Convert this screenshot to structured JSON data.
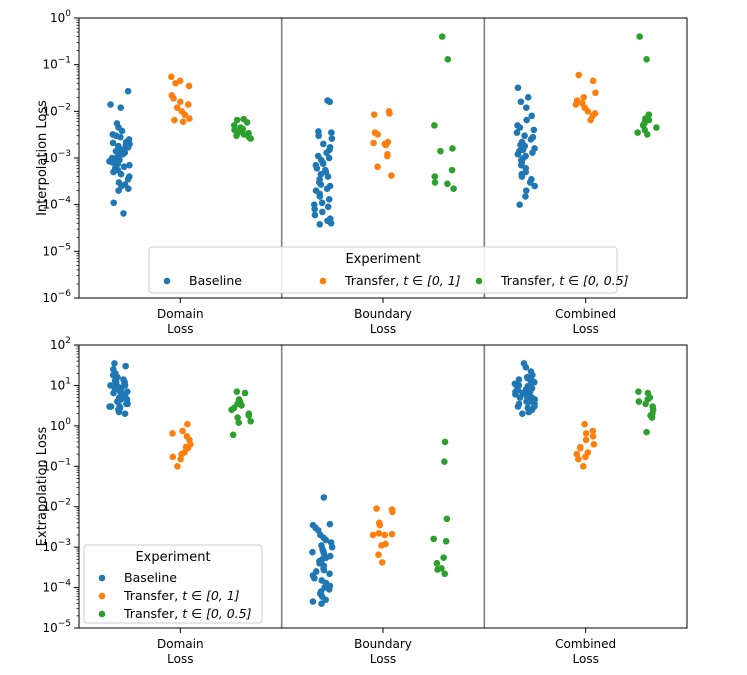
{
  "colors": {
    "baseline": "#1f77b4",
    "transfer_0_1": "#ff7f0e",
    "transfer_0_05": "#2ca02c",
    "separator": "#7f7f7f",
    "frame": "#000000"
  },
  "chart_data": [
    {
      "type": "scatter",
      "ylabel": "Interpolation Loss",
      "yscale": "log",
      "ylim": [
        1e-06,
        1
      ],
      "yticks": [
        {
          "value": 1e-06,
          "base": "10",
          "exp": "−6"
        },
        {
          "value": 1e-05,
          "base": "10",
          "exp": "−5"
        },
        {
          "value": 0.0001,
          "base": "10",
          "exp": "−4"
        },
        {
          "value": 0.001,
          "base": "10",
          "exp": "−3"
        },
        {
          "value": 0.01,
          "base": "10",
          "exp": "−2"
        },
        {
          "value": 0.1,
          "base": "10",
          "exp": "−1"
        },
        {
          "value": 1,
          "base": "10",
          "exp": "0"
        }
      ],
      "categories": [
        [
          "Domain",
          "Loss"
        ],
        [
          "Boundary",
          "Loss"
        ],
        [
          "Combined",
          "Loss"
        ]
      ],
      "legend": {
        "title": "Experiment",
        "placement": "lower-center",
        "layout": "horizontal",
        "entries": [
          {
            "text": "Baseline",
            "math": "",
            "series": 0
          },
          {
            "text": "Transfer, ",
            "math": "t ∈ [0, 1]",
            "series": 1
          },
          {
            "text": "Transfer, ",
            "math": "t ∈ [0, 0.5]",
            "series": 2
          }
        ]
      },
      "groups": [
        {
          "category": "Domain Loss",
          "series": [
            {
              "values": [
                0.027,
                0.014,
                0.012,
                0.0055,
                0.0045,
                0.0038,
                0.0032,
                0.003,
                0.0028,
                0.0025,
                0.0022,
                0.0021,
                0.002,
                0.0019,
                0.0018,
                0.0017,
                0.0016,
                0.0015,
                0.0014,
                0.0013,
                0.0012,
                0.0012,
                0.0011,
                0.001,
                0.00095,
                0.0009,
                0.00085,
                0.0008,
                0.00075,
                0.0007,
                0.00065,
                0.0006,
                0.00055,
                0.0005,
                0.00045,
                0.0004,
                0.00035,
                0.0003,
                0.00027,
                0.00025,
                0.00022,
                0.0002,
                0.00011,
                6.5e-05
              ]
            },
            {
              "values": [
                0.055,
                0.045,
                0.04,
                0.035,
                0.022,
                0.019,
                0.016,
                0.014,
                0.012,
                0.01,
                0.0085,
                0.007,
                0.0065,
                0.006
              ]
            },
            {
              "values": [
                0.0068,
                0.0065,
                0.0058,
                0.005,
                0.0045,
                0.0042,
                0.004,
                0.0038,
                0.0036,
                0.0034,
                0.0032,
                0.003,
                0.0028,
                0.0026
              ]
            }
          ]
        },
        {
          "category": "Boundary Loss",
          "series": [
            {
              "values": [
                0.017,
                0.016,
                0.0037,
                0.0035,
                0.003,
                0.0026,
                0.002,
                0.0017,
                0.0015,
                0.0013,
                0.0011,
                0.001,
                0.0009,
                0.0008,
                0.00075,
                0.0007,
                0.0006,
                0.00055,
                0.0005,
                0.00045,
                0.0004,
                0.00035,
                0.0003,
                0.00027,
                0.00025,
                0.00022,
                0.0002,
                0.00017,
                0.00015,
                0.00013,
                0.00011,
                0.0001,
                9e-05,
                8e-05,
                7e-05,
                6e-05,
                5e-05,
                4.5e-05,
                4e-05,
                3.8e-05
              ]
            },
            {
              "values": [
                0.01,
                0.009,
                0.0085,
                0.0035,
                0.0032,
                0.0022,
                0.0021,
                0.002,
                0.0019,
                0.0012,
                0.0011,
                0.00065,
                0.00042
              ]
            },
            {
              "values": [
                0.4,
                0.13,
                0.005,
                0.0016,
                0.0014,
                0.00055,
                0.0004,
                0.0003,
                0.00028,
                0.00022
              ]
            }
          ]
        },
        {
          "category": "Combined Loss",
          "series": [
            {
              "values": [
                0.032,
                0.02,
                0.016,
                0.012,
                0.008,
                0.0065,
                0.005,
                0.0045,
                0.004,
                0.0035,
                0.003,
                0.0028,
                0.0025,
                0.0022,
                0.002,
                0.0019,
                0.0018,
                0.0016,
                0.0015,
                0.0014,
                0.0013,
                0.0012,
                0.0011,
                0.001,
                0.0009,
                0.0008,
                0.0007,
                0.0006,
                0.0005,
                0.00045,
                0.0004,
                0.00035,
                0.0003,
                0.00025,
                0.0002,
                0.00015,
                0.0001
              ]
            },
            {
              "values": [
                0.06,
                0.045,
                0.025,
                0.02,
                0.017,
                0.015,
                0.014,
                0.012,
                0.01,
                0.009,
                0.008,
                0.0065
              ]
            },
            {
              "values": [
                0.4,
                0.13,
                0.0085,
                0.007,
                0.0065,
                0.006,
                0.0055,
                0.005,
                0.0045,
                0.004,
                0.0035,
                0.0032
              ]
            }
          ]
        }
      ]
    },
    {
      "type": "scatter",
      "ylabel": "Extrapolation Loss",
      "yscale": "log",
      "ylim": [
        1e-05,
        100
      ],
      "yticks": [
        {
          "value": 1e-05,
          "base": "10",
          "exp": "−5"
        },
        {
          "value": 0.0001,
          "base": "10",
          "exp": "−4"
        },
        {
          "value": 0.001,
          "base": "10",
          "exp": "−3"
        },
        {
          "value": 0.01,
          "base": "10",
          "exp": "−2"
        },
        {
          "value": 0.1,
          "base": "10",
          "exp": "−1"
        },
        {
          "value": 1,
          "base": "10",
          "exp": "0"
        },
        {
          "value": 10,
          "base": "10",
          "exp": "1"
        },
        {
          "value": 100,
          "base": "10",
          "exp": "2"
        }
      ],
      "categories": [
        [
          "Domain",
          "Loss"
        ],
        [
          "Boundary",
          "Loss"
        ],
        [
          "Combined",
          "Loss"
        ]
      ],
      "legend": {
        "title": "Experiment",
        "placement": "lower-left",
        "layout": "vertical",
        "entries": [
          {
            "text": "Baseline",
            "math": "",
            "series": 0
          },
          {
            "text": "Transfer, ",
            "math": "t ∈ [0, 1]",
            "series": 1
          },
          {
            "text": "Transfer, ",
            "math": "t ∈ [0, 0.5]",
            "series": 2
          }
        ]
      },
      "groups": [
        {
          "category": "Domain Loss",
          "series": [
            {
              "values": [
                35,
                30,
                25,
                20,
                18,
                16,
                15,
                14,
                13,
                12,
                12,
                11,
                10,
                10,
                9.5,
                9,
                8.5,
                8,
                7.5,
                7,
                7,
                6.5,
                6,
                6,
                5.5,
                5,
                5,
                4.5,
                4.5,
                4,
                4,
                3.5,
                3.5,
                3,
                3,
                3,
                2.8,
                2.5,
                2.2,
                2
              ]
            },
            {
              "values": [
                1.1,
                0.75,
                0.65,
                0.55,
                0.45,
                0.35,
                0.3,
                0.28,
                0.22,
                0.2,
                0.17,
                0.15,
                0.1
              ]
            },
            {
              "values": [
                7,
                6.5,
                4.5,
                4,
                3.5,
                3.2,
                2.8,
                2.5,
                2,
                1.8,
                1.6,
                1.3,
                1.2,
                0.6
              ]
            }
          ]
        },
        {
          "category": "Boundary Loss",
          "series": [
            {
              "values": [
                0.017,
                0.0037,
                0.0035,
                0.003,
                0.0026,
                0.002,
                0.0017,
                0.0015,
                0.0013,
                0.0011,
                0.001,
                0.0009,
                0.0008,
                0.00075,
                0.0007,
                0.0006,
                0.00055,
                0.0005,
                0.00045,
                0.0004,
                0.00035,
                0.0003,
                0.00027,
                0.00025,
                0.00022,
                0.0002,
                0.00017,
                0.00015,
                0.00013,
                0.00011,
                0.0001,
                9e-05,
                8e-05,
                7e-05,
                6e-05,
                5e-05,
                4.5e-05,
                4e-05
              ]
            },
            {
              "values": [
                0.009,
                0.0085,
                0.0075,
                0.004,
                0.0035,
                0.0022,
                0.0021,
                0.002,
                0.002,
                0.0012,
                0.0011,
                0.00065,
                0.00042
              ]
            },
            {
              "values": [
                0.4,
                0.13,
                0.005,
                0.0016,
                0.0014,
                0.00055,
                0.0004,
                0.0003,
                0.00028,
                0.00022
              ]
            }
          ]
        },
        {
          "category": "Combined Loss",
          "series": [
            {
              "values": [
                35,
                28,
                22,
                18,
                16,
                15,
                14,
                13,
                12,
                12,
                11,
                10,
                10,
                9.5,
                9,
                8.5,
                8,
                7.5,
                7,
                7,
                6.5,
                6,
                6,
                5.5,
                5,
                5,
                4.5,
                4.5,
                4,
                4,
                3.5,
                3.5,
                3,
                3,
                2.8,
                2.5,
                2.2,
                2
              ]
            },
            {
              "values": [
                1.1,
                0.75,
                0.65,
                0.55,
                0.45,
                0.35,
                0.3,
                0.28,
                0.22,
                0.2,
                0.17,
                0.15,
                0.1
              ]
            },
            {
              "values": [
                7,
                6.5,
                5,
                4.5,
                4,
                3.5,
                3,
                2.5,
                2,
                1.8,
                1.6,
                0.7
              ]
            }
          ]
        }
      ]
    }
  ]
}
